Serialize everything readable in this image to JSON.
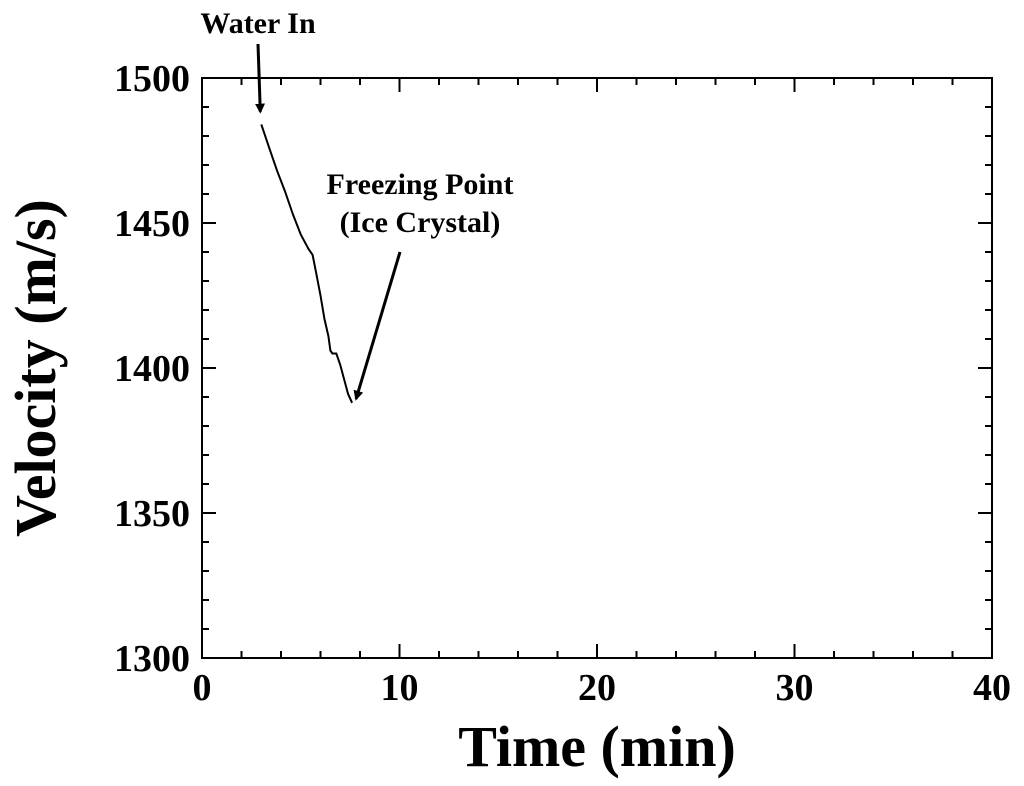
{
  "chart_data": {
    "type": "line",
    "xlabel": "Time (min)",
    "ylabel": "Velocity (m/s)",
    "xlim": [
      0,
      40
    ],
    "ylim": [
      1300,
      1500
    ],
    "x_ticks": [
      0,
      10,
      20,
      30,
      40
    ],
    "x_tick_labels": [
      "0",
      "10",
      "20",
      "30",
      "40"
    ],
    "y_ticks": [
      1300,
      1350,
      1400,
      1450,
      1500
    ],
    "y_tick_labels": [
      "1300",
      "1350",
      "1400",
      "1450",
      "1500"
    ],
    "x_minor_step": 2,
    "y_minor_step": 10,
    "grid": false,
    "series": [
      {
        "x": [
          3.0,
          3.4,
          3.8,
          4.2,
          4.6,
          5.0,
          5.4,
          5.6,
          5.8,
          6.0,
          6.2,
          6.4,
          6.5,
          6.6,
          6.8,
          7.0,
          7.2,
          7.4,
          7.6
        ],
        "y": [
          1484,
          1476,
          1468,
          1461,
          1453,
          1446,
          1441,
          1439,
          1432,
          1425,
          1417,
          1411,
          1406,
          1405,
          1405,
          1401,
          1396,
          1391,
          1388
        ],
        "color": "#000000"
      }
    ],
    "annotations": [
      {
        "text": "Water In",
        "arrow_to": [
          2.8,
          1487
        ]
      },
      {
        "text": "Freezing Point",
        "line2": "(Ice Crystal)",
        "arrow_to": [
          7.6,
          1388
        ]
      }
    ]
  }
}
